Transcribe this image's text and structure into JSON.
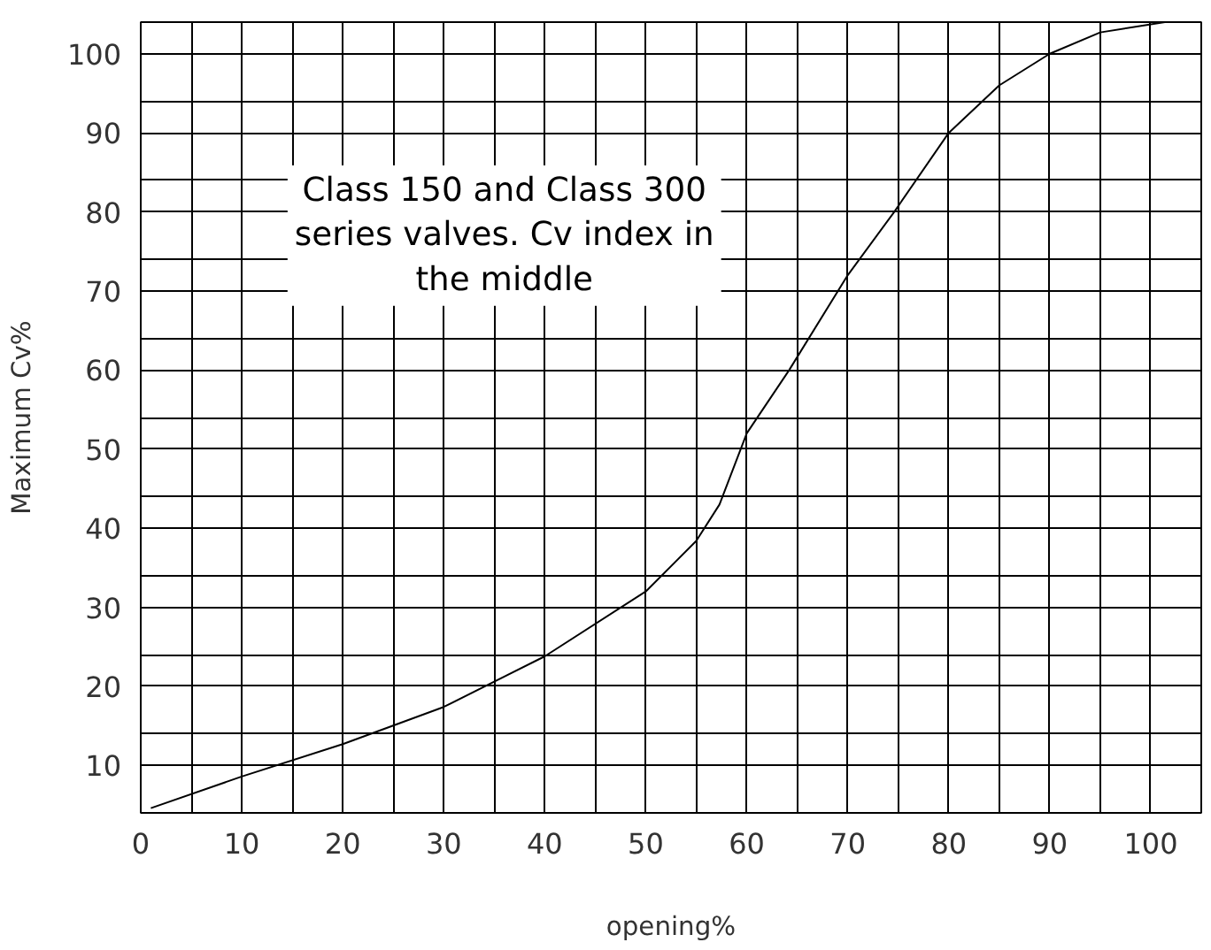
{
  "chart_data": {
    "type": "line",
    "xlabel": "opening%",
    "ylabel": "Maximum Cv%",
    "annotations": [
      "Class 150 and Class 300 series valves. Cv index in the middle"
    ],
    "x": [
      1,
      10,
      20,
      30,
      40,
      50,
      55,
      57.3,
      60,
      64.2,
      70,
      74.6,
      80,
      85,
      90,
      95,
      101.4
    ],
    "series": [
      {
        "color": "#000000",
        "values": [
          4.6,
          8.6,
          12.7,
          17.4,
          23.8,
          32,
          38.4,
          43,
          52,
          60,
          72,
          80,
          90,
          96,
          100,
          102.7,
          104
        ]
      }
    ],
    "xlim": [
      0,
      105
    ],
    "xticks": [
      0,
      10,
      20,
      30,
      40,
      50,
      60,
      70,
      80,
      90,
      100,
      {
        "value": 5,
        "label": null
      },
      {
        "value": 15,
        "label": null
      },
      {
        "value": 25,
        "label": null
      },
      {
        "value": 35,
        "label": null
      },
      {
        "value": 45,
        "label": null
      },
      {
        "value": 55,
        "label": null
      },
      {
        "value": 65,
        "label": null
      },
      {
        "value": 75,
        "label": null
      },
      {
        "value": 85,
        "label": null
      },
      {
        "value": 95,
        "label": null
      },
      {
        "value": 105,
        "label": null
      }
    ],
    "ylim": [
      4,
      104
    ],
    "yticks": [
      10,
      20,
      30,
      40,
      50,
      60,
      70,
      80,
      90,
      100,
      {
        "value": 4,
        "label": null
      },
      {
        "value": 14,
        "label": null
      },
      {
        "value": 24,
        "label": null
      },
      {
        "value": 34,
        "label": null
      },
      {
        "value": 44,
        "label": null
      },
      {
        "value": 54,
        "label": null
      },
      {
        "value": 64,
        "label": null
      },
      {
        "value": 74,
        "label": null
      },
      {
        "value": 84,
        "label": null
      },
      {
        "value": 94,
        "label": null
      },
      {
        "value": 104,
        "label": null
      }
    ],
    "grid": true,
    "marker": "none",
    "line_style": "solid"
  }
}
